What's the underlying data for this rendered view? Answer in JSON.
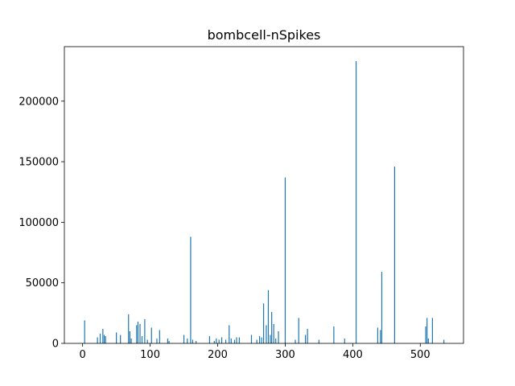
{
  "chart_data": {
    "type": "bar",
    "title": "bombcell-nSpikes",
    "xlabel": "",
    "ylabel": "",
    "xlim": [
      -27,
      564
    ],
    "ylim": [
      0,
      245000
    ],
    "xticks": [
      0,
      100,
      200,
      300,
      400,
      500
    ],
    "yticks": [
      0,
      50000,
      100000,
      150000,
      200000
    ],
    "grid": false,
    "bar_color": "#1f77b4",
    "series": [
      {
        "x": [
          3,
          22,
          26,
          30,
          32,
          34,
          50,
          56,
          68,
          70,
          72,
          80,
          82,
          85,
          88,
          92,
          96,
          102,
          110,
          114,
          126,
          128,
          150,
          155,
          160,
          163,
          168,
          188,
          195,
          198,
          202,
          206,
          212,
          217,
          220,
          225,
          228,
          232,
          250,
          258,
          262,
          265,
          268,
          272,
          275,
          278,
          280,
          283,
          286,
          290,
          300,
          315,
          320,
          330,
          333,
          350,
          372,
          388,
          405,
          437,
          441,
          443,
          462,
          508,
          510,
          512,
          518,
          535
        ],
        "values": [
          19000,
          5000,
          8000,
          12000,
          7000,
          6000,
          9000,
          7000,
          24000,
          10000,
          4000,
          15000,
          18000,
          16000,
          6000,
          20000,
          3000,
          13000,
          4000,
          11000,
          4000,
          2000,
          7000,
          4000,
          88000,
          3000,
          2000,
          6000,
          2000,
          4000,
          3000,
          5000,
          3000,
          15000,
          4000,
          3000,
          5000,
          5000,
          7000,
          3000,
          6000,
          5000,
          33000,
          15000,
          44000,
          7000,
          26000,
          16000,
          4000,
          10000,
          137000,
          3000,
          21000,
          7000,
          12000,
          3000,
          14000,
          4000,
          233000,
          13000,
          11000,
          59000,
          146000,
          14000,
          21000,
          4000,
          21000,
          3000
        ]
      }
    ]
  }
}
